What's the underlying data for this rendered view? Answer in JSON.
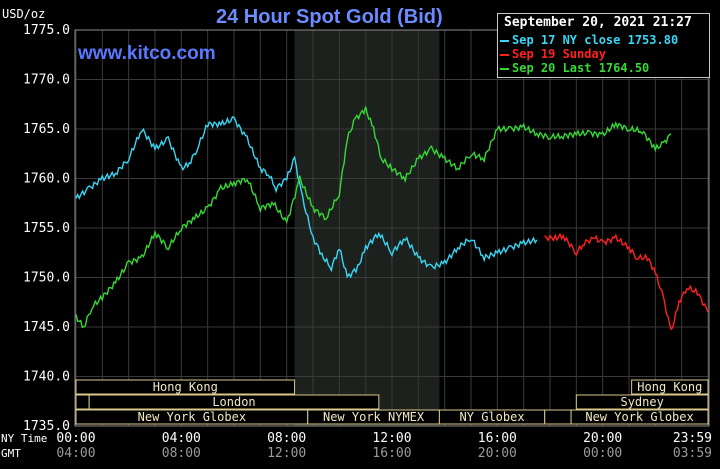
{
  "header": {
    "title": "24 Hour Spot Gold (Bid)",
    "units": "USD/oz",
    "brand": "www.kitco.com",
    "timestamp": "September 20, 2021 21:27"
  },
  "legend": [
    {
      "label": "Sep 17 NY close 1753.80",
      "color": "#37d7f5"
    },
    {
      "label": "Sep 19 Sunday",
      "color": "#ff2020"
    },
    {
      "label": "Sep 20 Last 1764.50",
      "color": "#35d835"
    }
  ],
  "axis": {
    "ny_time_label": "NY Time",
    "gmt_label": "GMT",
    "ny_ticks": [
      "00:00",
      "04:00",
      "08:00",
      "12:00",
      "16:00",
      "20:00",
      "23:59"
    ],
    "gmt_ticks": [
      "04:00",
      "08:00",
      "12:00",
      "16:00",
      "20:00",
      "00:00",
      "03:59"
    ]
  },
  "sessions": {
    "row1": [
      {
        "label": "Hong Kong",
        "start": -0.5,
        "end": 8.3
      },
      {
        "label": "Hong Kong",
        "start": 21.1,
        "end": 24
      }
    ],
    "row2": [
      {
        "label": "",
        "start": -0.5,
        "end": 0.5
      },
      {
        "label": "London",
        "start": 0.5,
        "end": 11.5
      },
      {
        "label": "Sydney",
        "start": 19.0,
        "end": 24
      }
    ],
    "row3": [
      {
        "label": "New York Globex",
        "start": -0.5,
        "end": 8.8
      },
      {
        "label": "New York NYMEX",
        "start": 8.8,
        "end": 13.8
      },
      {
        "label": "NY Globex",
        "start": 13.8,
        "end": 17.8
      },
      {
        "label": "",
        "start": 17.8,
        "end": 18.8
      },
      {
        "label": "New York Globex",
        "start": 18.8,
        "end": 24
      }
    ]
  },
  "chart_data": {
    "type": "line",
    "title": "24 Hour Spot Gold (Bid)",
    "ylabel": "USD/oz",
    "xlabel": "NY Time / GMT",
    "ylim": [
      1735.0,
      1775.0
    ],
    "xlim": [
      0,
      24
    ],
    "y_ticks": [
      "1735.0",
      "1740.0",
      "1745.0",
      "1750.0",
      "1755.0",
      "1760.0",
      "1765.0",
      "1770.0",
      "1775.0"
    ],
    "grid": true,
    "legend_position": "top-right",
    "shaded_region_hours": [
      8.3,
      13.8
    ],
    "series": [
      {
        "name": "Sep 17 NY close 1753.80",
        "color": "#37d7f5",
        "x": [
          0.0,
          0.5,
          1.0,
          1.5,
          2.0,
          2.5,
          3.0,
          3.5,
          4.0,
          4.3,
          4.6,
          5.0,
          5.5,
          6.0,
          6.5,
          7.0,
          7.3,
          7.6,
          8.0,
          8.3,
          8.6,
          9.0,
          9.4,
          9.7,
          10.0,
          10.3,
          10.7,
          11.0,
          11.5,
          12.0,
          12.5,
          13.0,
          13.5,
          14.0,
          14.5,
          15.0,
          15.5,
          16.0,
          16.5,
          17.0,
          17.5
        ],
        "y": [
          1758.0,
          1759.0,
          1760.0,
          1760.5,
          1762.0,
          1765.0,
          1763.0,
          1764.0,
          1761.0,
          1761.5,
          1763.0,
          1765.5,
          1765.5,
          1766.0,
          1764.0,
          1761.0,
          1760.5,
          1759.0,
          1760.0,
          1762.0,
          1758.0,
          1754.0,
          1752.0,
          1751.0,
          1753.0,
          1750.0,
          1751.0,
          1753.0,
          1754.5,
          1752.5,
          1754.0,
          1752.0,
          1751.0,
          1751.5,
          1753.0,
          1754.0,
          1752.0,
          1752.5,
          1753.0,
          1753.5,
          1753.8
        ]
      },
      {
        "name": "Sep 19 Sunday",
        "color": "#ff2020",
        "x": [
          17.8,
          18.2,
          18.5,
          19.0,
          19.3,
          19.7,
          20.0,
          20.5,
          21.0,
          21.3,
          21.7,
          22.0,
          22.3,
          22.6,
          22.9,
          23.2,
          23.6,
          24.0
        ],
        "y": [
          1754.0,
          1754.0,
          1754.2,
          1752.5,
          1753.5,
          1754.0,
          1753.5,
          1754.0,
          1753.0,
          1752.0,
          1752.0,
          1750.5,
          1748.0,
          1744.5,
          1747.5,
          1749.0,
          1748.5,
          1746.5
        ]
      },
      {
        "name": "Sep 20 Last 1764.50",
        "color": "#35d835",
        "x": [
          0.0,
          0.3,
          0.6,
          1.0,
          1.5,
          2.0,
          2.5,
          3.0,
          3.5,
          4.0,
          4.5,
          5.0,
          5.5,
          6.0,
          6.5,
          7.0,
          7.5,
          8.0,
          8.5,
          9.0,
          9.5,
          10.0,
          10.3,
          10.6,
          11.0,
          11.3,
          11.6,
          12.0,
          12.5,
          13.0,
          13.5,
          14.0,
          14.5,
          15.0,
          15.5,
          16.0,
          16.5,
          17.0,
          17.5,
          18.0,
          18.5,
          19.0,
          19.5,
          20.0,
          20.5,
          21.0,
          21.5,
          22.0,
          22.3,
          22.6
        ],
        "y": [
          1746.0,
          1745.0,
          1747.0,
          1748.0,
          1749.5,
          1751.5,
          1752.0,
          1754.5,
          1753.0,
          1755.0,
          1756.0,
          1757.0,
          1759.0,
          1759.5,
          1760.0,
          1757.0,
          1757.5,
          1755.5,
          1760.0,
          1757.0,
          1756.0,
          1758.5,
          1764.0,
          1766.0,
          1767.0,
          1765.0,
          1762.0,
          1761.0,
          1760.0,
          1762.0,
          1763.0,
          1762.0,
          1761.0,
          1762.5,
          1762.0,
          1765.0,
          1765.0,
          1765.2,
          1764.5,
          1764.2,
          1764.3,
          1764.5,
          1764.6,
          1764.4,
          1765.5,
          1765.0,
          1764.8,
          1763.0,
          1763.5,
          1764.5
        ]
      }
    ]
  }
}
